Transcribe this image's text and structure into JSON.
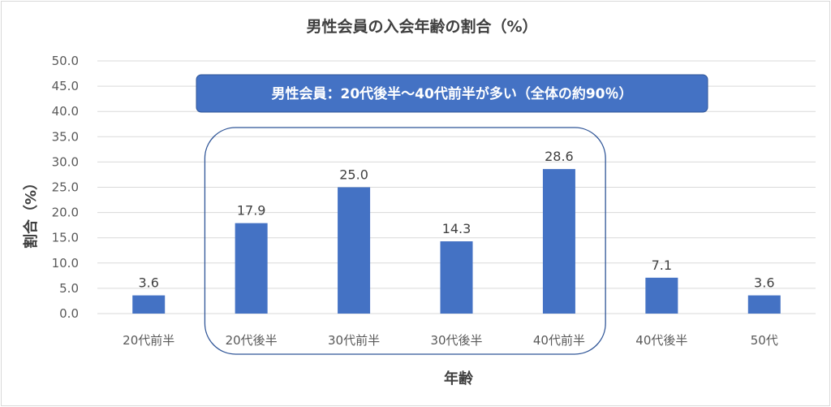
{
  "chart_data": {
    "type": "bar",
    "title": "男性会員の入会年齢の割合（%）",
    "xlabel": "年齢",
    "ylabel": "割合（%）",
    "categories": [
      "20代前半",
      "20代後半",
      "30代前半",
      "30代後半",
      "40代前半",
      "40代後半",
      "50代"
    ],
    "values": [
      3.6,
      17.9,
      25.0,
      14.3,
      28.6,
      7.1,
      3.6
    ],
    "value_labels": [
      "3.6",
      "17.9",
      "25.0",
      "14.3",
      "28.6",
      "7.1",
      "3.6"
    ],
    "ylim": [
      0,
      50
    ],
    "yticks": [
      "0.0",
      "5.0",
      "10.0",
      "15.0",
      "20.0",
      "25.0",
      "30.0",
      "35.0",
      "40.0",
      "45.0",
      "50.0"
    ],
    "grid": true,
    "bar_color": "#4472c4",
    "annotation": {
      "text": "男性会員：20代後半～40代前半が多い（全体の約90％）",
      "fill_color": "#4472c4",
      "highlight_categories": [
        "20代後半",
        "30代前半",
        "30代後半",
        "40代前半"
      ]
    }
  }
}
